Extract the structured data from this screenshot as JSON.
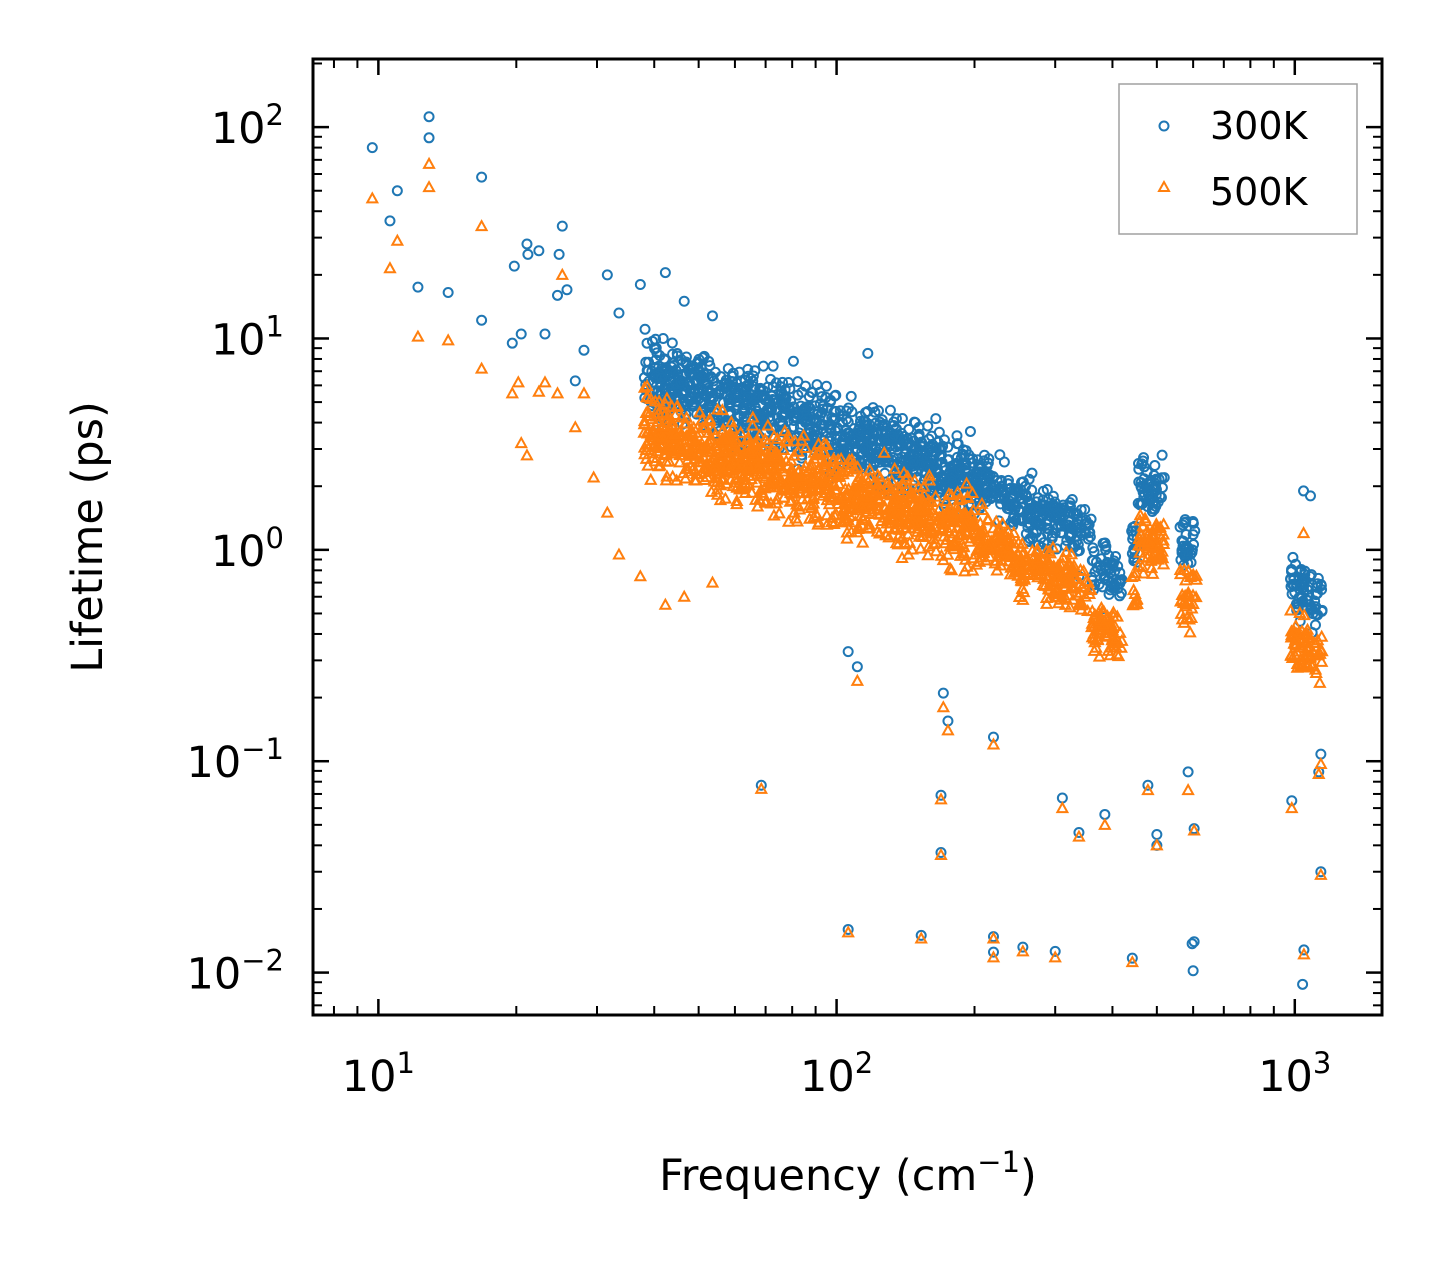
{
  "chart_data": {
    "type": "scatter",
    "x_scale": "log",
    "y_scale": "log",
    "xlim": [
      7.2,
      1550
    ],
    "ylim": [
      0.0063,
      210
    ],
    "xlabel": "Frequency (cm",
    "xlabel_sup": "−1",
    "xlabel_tail": ")",
    "ylabel": "Lifetime (ps)",
    "x_ticks": [
      {
        "value": 10,
        "base": "10",
        "exp": "1"
      },
      {
        "value": 100,
        "base": "10",
        "exp": "2"
      },
      {
        "value": 1000,
        "base": "10",
        "exp": "3"
      }
    ],
    "y_ticks": [
      {
        "value": 100,
        "base": "10",
        "exp": "2"
      },
      {
        "value": 10,
        "base": "10",
        "exp": "1"
      },
      {
        "value": 1,
        "base": "10",
        "exp": "0"
      },
      {
        "value": 0.1,
        "base": "10",
        "exp": "−1"
      },
      {
        "value": 0.01,
        "base": "10",
        "exp": "−2"
      }
    ],
    "legend": {
      "position": "top-right",
      "entries": [
        "300K",
        "500K"
      ]
    },
    "series": [
      {
        "name": "300K",
        "marker": "circle",
        "color": "#1f77b4",
        "sample_points": [
          [
            9.7,
            80
          ],
          [
            10.6,
            36
          ],
          [
            11,
            50
          ],
          [
            12.2,
            17.5
          ],
          [
            12.9,
            112
          ],
          [
            12.9,
            89
          ],
          [
            14.2,
            16.5
          ],
          [
            16.8,
            58
          ],
          [
            16.8,
            12.2
          ],
          [
            19.6,
            9.5
          ],
          [
            19.8,
            22
          ],
          [
            20.5,
            10.5
          ],
          [
            21.1,
            28
          ],
          [
            21.2,
            25
          ],
          [
            22.4,
            26
          ],
          [
            23.1,
            10.5
          ],
          [
            24.6,
            16
          ],
          [
            24.8,
            25
          ],
          [
            25.2,
            34
          ],
          [
            25.8,
            17
          ],
          [
            26.9,
            6.3
          ],
          [
            28.1,
            8.8
          ],
          [
            31.6,
            20
          ],
          [
            33.5,
            13.2
          ],
          [
            37.3,
            18
          ],
          [
            42.3,
            20.5
          ],
          [
            46.5,
            15
          ],
          [
            53.6,
            12.8
          ],
          [
            68.5,
            0.077
          ],
          [
            80.5,
            7.8
          ],
          [
            106,
            0.016
          ],
          [
            106,
            0.33
          ],
          [
            111,
            0.28
          ],
          [
            117,
            8.5
          ],
          [
            153,
            0.015
          ],
          [
            169,
            0.037
          ],
          [
            169,
            0.069
          ],
          [
            171,
            0.21
          ],
          [
            175,
            0.155
          ],
          [
            220,
            0.13
          ],
          [
            220,
            0.0148
          ],
          [
            220,
            0.0125
          ],
          [
            255,
            0.0132
          ],
          [
            300,
            0.0126
          ],
          [
            311,
            0.067
          ],
          [
            338,
            0.046
          ],
          [
            385,
            0.056
          ],
          [
            442,
            0.0117
          ],
          [
            478,
            0.077
          ],
          [
            500,
            0.045
          ],
          [
            500,
            0.04
          ],
          [
            585,
            0.089
          ],
          [
            597,
            0.0137
          ],
          [
            600,
            0.0102
          ],
          [
            603,
            0.048
          ],
          [
            603,
            0.014
          ],
          [
            985,
            0.065
          ],
          [
            1040,
            0.0088
          ],
          [
            1047,
            0.0128
          ],
          [
            1128,
            0.089
          ],
          [
            1140,
            0.108
          ],
          [
            1140,
            0.03
          ],
          [
            1045,
            1.9
          ],
          [
            1082,
            1.8
          ],
          [
            478,
            2.05
          ],
          [
            600,
            1.18
          ],
          [
            160,
            2.4
          ],
          [
            198,
            1.8
          ],
          [
            256,
            1.4
          ],
          [
            300,
            1.2
          ],
          [
            338,
            0.75
          ],
          [
            385,
            0.48
          ],
          [
            408,
            0.7
          ]
        ]
      },
      {
        "name": "500K",
        "marker": "triangle",
        "color": "#ff7f0e",
        "sample_points": [
          [
            9.7,
            46
          ],
          [
            10.6,
            21.5
          ],
          [
            11,
            29
          ],
          [
            12.2,
            10.2
          ],
          [
            12.9,
            67
          ],
          [
            12.9,
            52
          ],
          [
            14.2,
            9.8
          ],
          [
            16.8,
            34
          ],
          [
            16.8,
            7.2
          ],
          [
            19.6,
            5.5
          ],
          [
            20.2,
            6.2
          ],
          [
            20.5,
            3.2
          ],
          [
            21.1,
            2.8
          ],
          [
            22.4,
            5.6
          ],
          [
            23.1,
            6.2
          ],
          [
            24.6,
            5.5
          ],
          [
            25.2,
            20
          ],
          [
            26.9,
            3.8
          ],
          [
            28.1,
            5.5
          ],
          [
            29.5,
            2.2
          ],
          [
            31.6,
            1.5
          ],
          [
            33.5,
            0.95
          ],
          [
            37.3,
            0.75
          ],
          [
            42.3,
            0.55
          ],
          [
            46.5,
            0.6
          ],
          [
            53.6,
            0.7
          ],
          [
            68.5,
            0.074
          ],
          [
            106,
            0.0155
          ],
          [
            111,
            0.24
          ],
          [
            153,
            0.0145
          ],
          [
            169,
            0.036
          ],
          [
            169,
            0.066
          ],
          [
            171,
            0.18
          ],
          [
            175,
            0.14
          ],
          [
            220,
            0.12
          ],
          [
            220,
            0.0145
          ],
          [
            220,
            0.0118
          ],
          [
            255,
            0.0126
          ],
          [
            300,
            0.0118
          ],
          [
            311,
            0.06
          ],
          [
            338,
            0.044
          ],
          [
            385,
            0.05
          ],
          [
            442,
            0.0112
          ],
          [
            478,
            0.073
          ],
          [
            500,
            0.04
          ],
          [
            585,
            0.073
          ],
          [
            603,
            0.047
          ],
          [
            985,
            0.06
          ],
          [
            1047,
            0.0122
          ],
          [
            1128,
            0.087
          ],
          [
            1140,
            0.097
          ],
          [
            1140,
            0.029
          ],
          [
            478,
            1.1
          ],
          [
            1045,
            1.2
          ],
          [
            600,
            0.75
          ],
          [
            408,
            0.38
          ],
          [
            338,
            0.55
          ],
          [
            255,
            0.58
          ]
        ]
      }
    ]
  }
}
